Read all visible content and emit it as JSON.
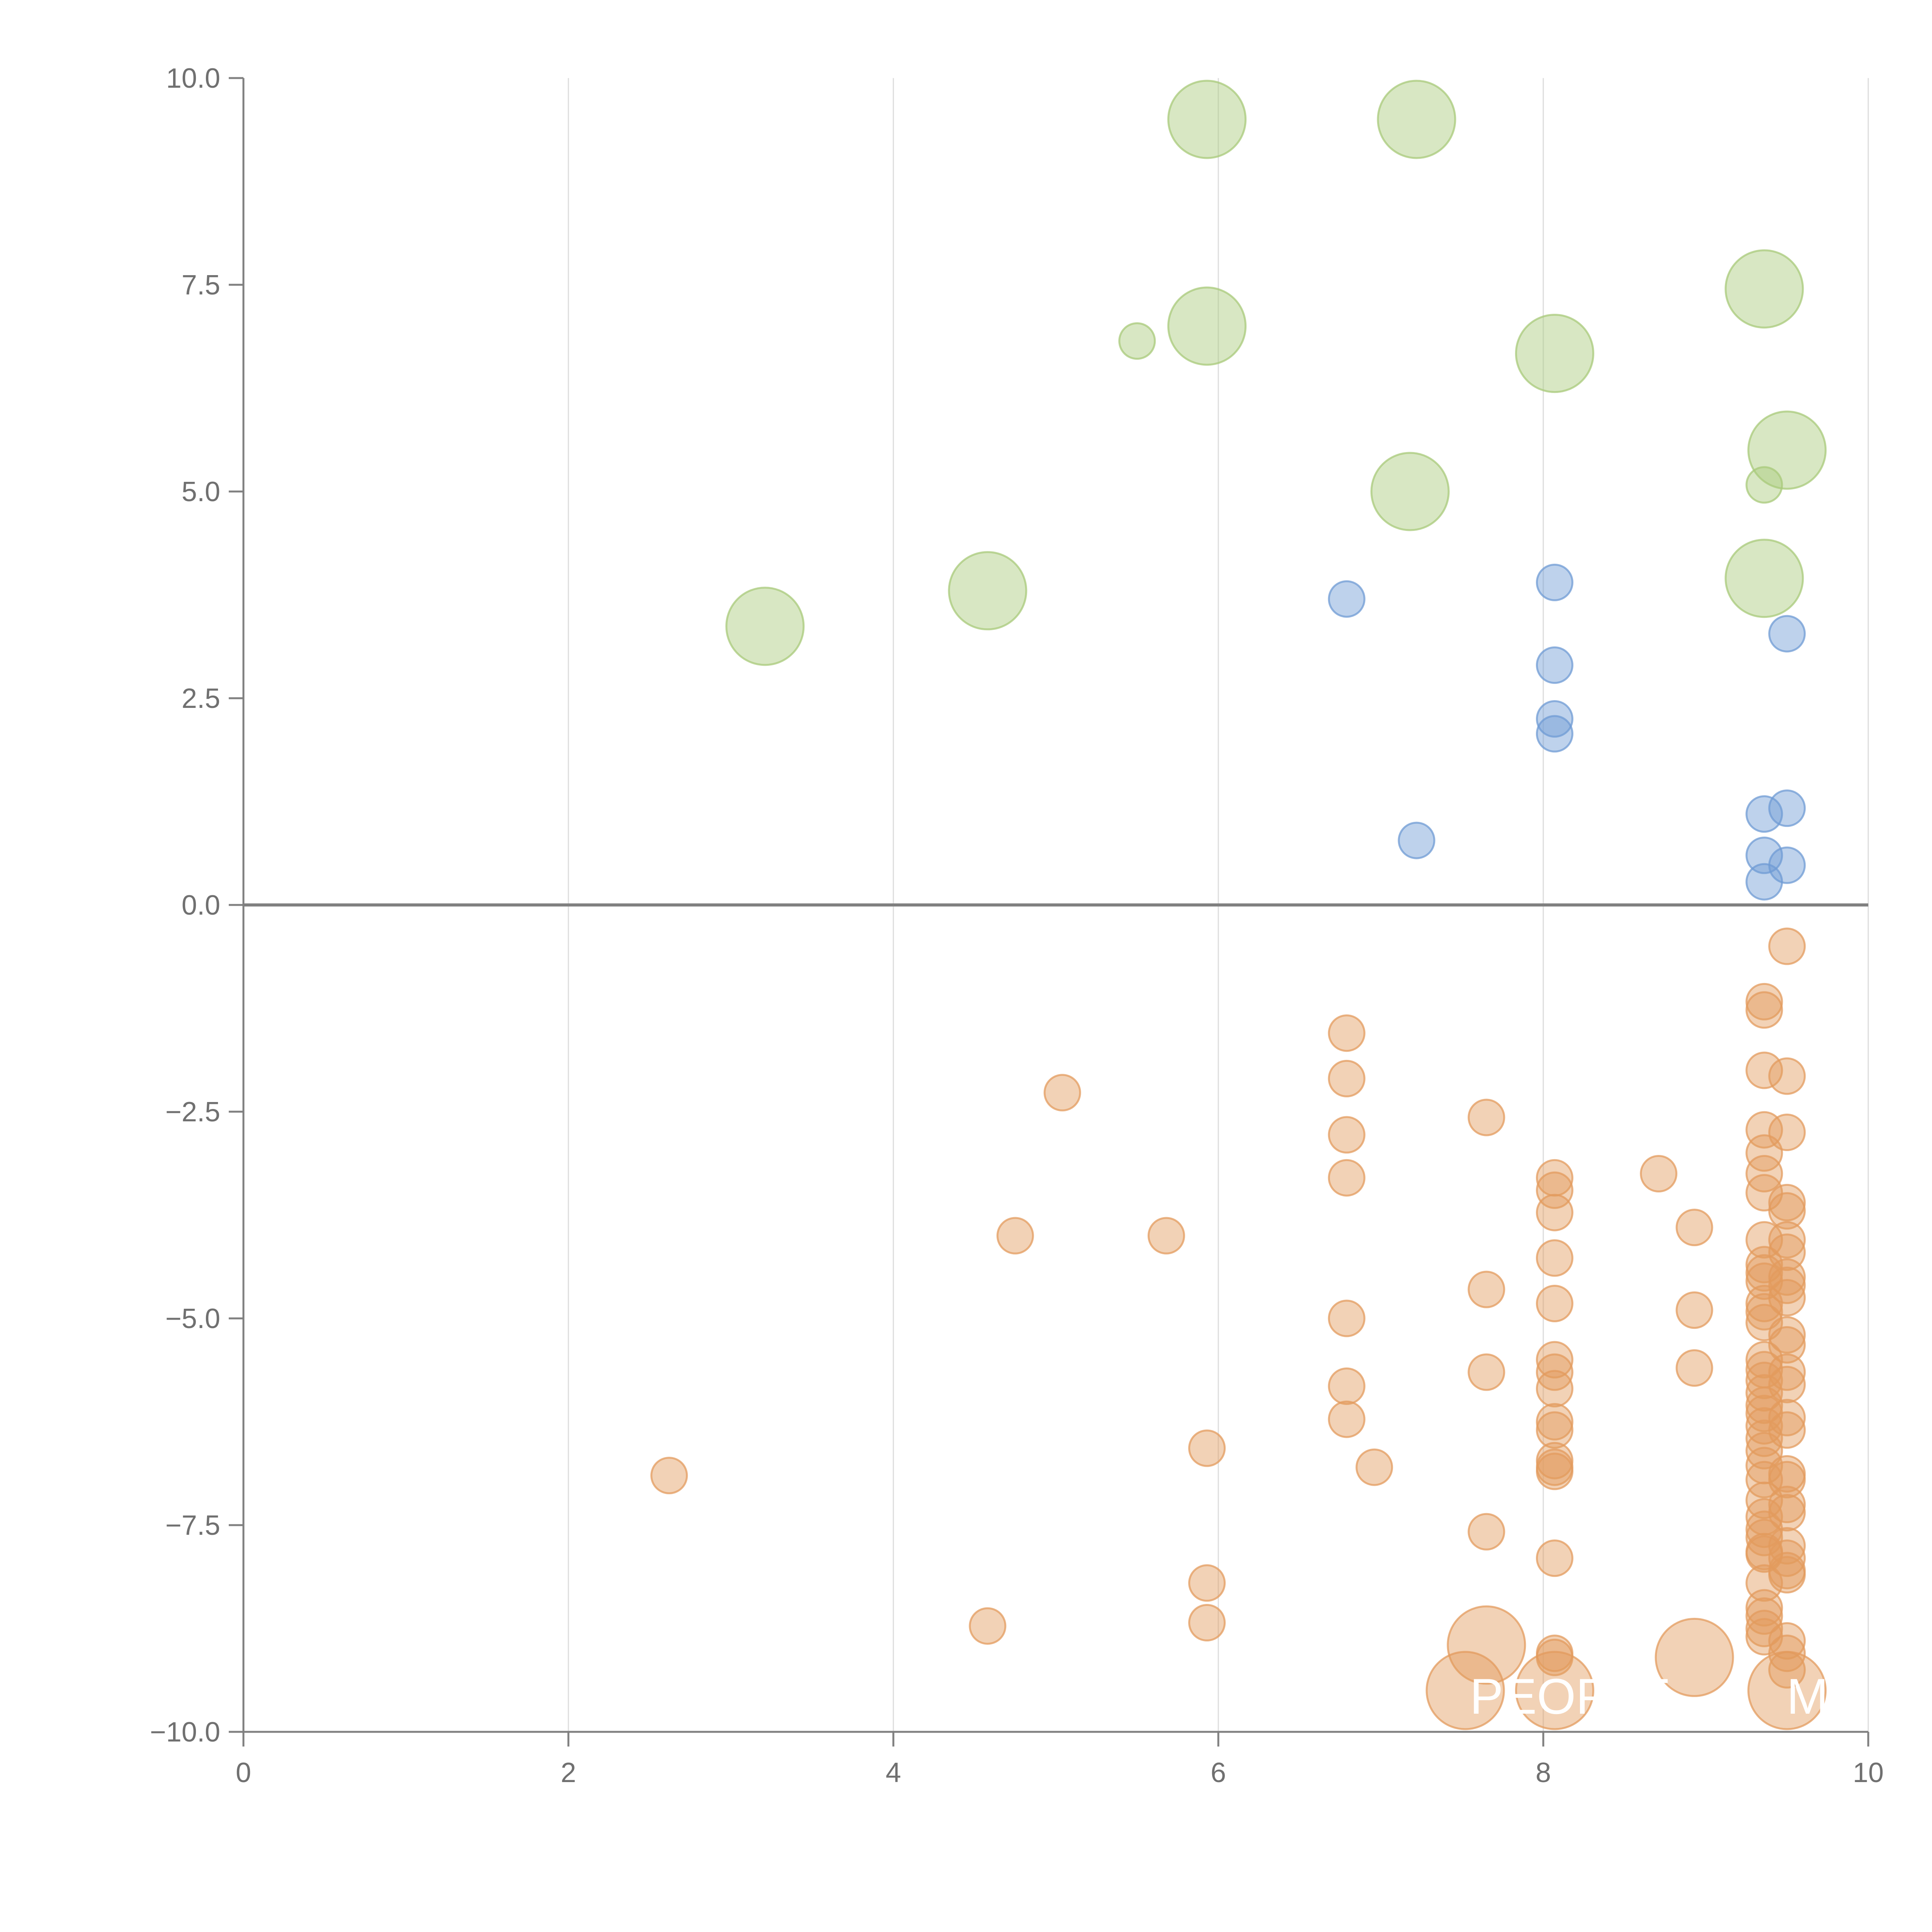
{
  "colors": {
    "positive_large": "#a8c97a",
    "positive_small": "#6f9bd4",
    "negative": "#e39b5d",
    "axis": "#808080",
    "grid": "#dcdcdc"
  },
  "chart_data": {
    "type": "scatter",
    "title": "",
    "xlabel": "",
    "ylabel": "",
    "xlim": [
      0,
      10
    ],
    "ylim": [
      -10,
      10
    ],
    "x_ticks": [
      0,
      2,
      4,
      6,
      8,
      10
    ],
    "x_tick_labels": [
      "0",
      "2",
      "4",
      "6",
      "8",
      "10"
    ],
    "y_ticks": [
      10,
      7.5,
      5,
      2.5,
      0,
      -2.5,
      -5,
      -7.5,
      -10
    ],
    "y_tick_labels": [
      "10.0",
      "7.5",
      "5.0",
      "2.5",
      "0.0",
      "−2.5",
      "−5.0",
      "−7.5",
      "−10.0"
    ],
    "vertical_grid": true,
    "horizontal_zero_line": true,
    "annotations": [
      {
        "text": "PEOPLE",
        "x": 7.5,
        "y": -9.5
      },
      {
        "text": "MT",
        "x": 9.45,
        "y": -9.5
      }
    ],
    "series": [
      {
        "name": "positive-large",
        "color_key": "positive_large",
        "size": "large",
        "points": [
          [
            5.93,
            9.5
          ],
          [
            7.22,
            9.5
          ],
          [
            9.36,
            7.45
          ],
          [
            5.93,
            7.0
          ],
          [
            8.07,
            6.67
          ],
          [
            9.5,
            5.5
          ],
          [
            7.18,
            5.0
          ],
          [
            9.36,
            3.95
          ],
          [
            4.58,
            3.8
          ],
          [
            3.21,
            3.37
          ]
        ]
      },
      {
        "name": "positive-small-green",
        "color_key": "positive_large",
        "size": "small",
        "points": [
          [
            5.5,
            6.82
          ],
          [
            9.36,
            5.08
          ]
        ]
      },
      {
        "name": "positive-small-blue",
        "color_key": "positive_small",
        "size": "small",
        "points": [
          [
            6.79,
            3.7
          ],
          [
            8.07,
            3.9
          ],
          [
            8.07,
            2.9
          ],
          [
            8.07,
            2.25
          ],
          [
            8.07,
            2.07
          ],
          [
            9.5,
            3.28
          ],
          [
            9.36,
            1.1
          ],
          [
            9.5,
            1.17
          ],
          [
            7.22,
            0.78
          ],
          [
            9.36,
            0.6
          ],
          [
            9.5,
            0.48
          ],
          [
            9.36,
            0.28
          ]
        ]
      },
      {
        "name": "negative-small",
        "color_key": "negative",
        "size": "small",
        "points": [
          [
            9.5,
            -0.5
          ],
          [
            9.36,
            -1.17
          ],
          [
            9.36,
            -1.27
          ],
          [
            6.79,
            -1.55
          ],
          [
            6.79,
            -2.1
          ],
          [
            9.36,
            -2.0
          ],
          [
            9.5,
            -2.07
          ],
          [
            5.04,
            -2.27
          ],
          [
            7.65,
            -2.57
          ],
          [
            6.79,
            -2.78
          ],
          [
            9.36,
            -2.72
          ],
          [
            9.5,
            -2.75
          ],
          [
            9.36,
            -3.0
          ],
          [
            9.36,
            -3.25
          ],
          [
            8.07,
            -3.3
          ],
          [
            8.71,
            -3.25
          ],
          [
            6.79,
            -3.3
          ],
          [
            8.07,
            -3.45
          ],
          [
            9.36,
            -3.48
          ],
          [
            9.5,
            -3.6
          ],
          [
            8.07,
            -3.72
          ],
          [
            9.5,
            -3.7
          ],
          [
            8.93,
            -3.9
          ],
          [
            4.75,
            -4.0
          ],
          [
            5.68,
            -4.0
          ],
          [
            9.36,
            -4.05
          ],
          [
            9.5,
            -4.05
          ],
          [
            9.5,
            -4.2
          ],
          [
            8.07,
            -4.27
          ],
          [
            9.36,
            -4.35
          ],
          [
            9.36,
            -4.45
          ],
          [
            9.5,
            -4.5
          ],
          [
            9.36,
            -4.55
          ],
          [
            9.5,
            -4.6
          ],
          [
            7.65,
            -4.65
          ],
          [
            9.5,
            -4.75
          ],
          [
            8.07,
            -4.82
          ],
          [
            9.36,
            -4.82
          ],
          [
            9.36,
            -4.92
          ],
          [
            8.93,
            -4.9
          ],
          [
            6.79,
            -5.0
          ],
          [
            9.36,
            -5.05
          ],
          [
            9.5,
            -5.2
          ],
          [
            9.5,
            -5.32
          ],
          [
            9.36,
            -5.5
          ],
          [
            8.07,
            -5.5
          ],
          [
            9.36,
            -5.62
          ],
          [
            7.65,
            -5.65
          ],
          [
            8.93,
            -5.6
          ],
          [
            8.07,
            -5.65
          ],
          [
            9.5,
            -5.65
          ],
          [
            9.36,
            -5.75
          ],
          [
            9.5,
            -5.8
          ],
          [
            6.79,
            -5.82
          ],
          [
            8.07,
            -5.85
          ],
          [
            9.36,
            -5.9
          ],
          [
            9.36,
            -6.05
          ],
          [
            9.36,
            -6.15
          ],
          [
            9.5,
            -6.2
          ],
          [
            6.79,
            -6.22
          ],
          [
            8.07,
            -6.25
          ],
          [
            9.36,
            -6.3
          ],
          [
            8.07,
            -6.35
          ],
          [
            9.5,
            -6.35
          ],
          [
            9.36,
            -6.45
          ],
          [
            5.93,
            -6.57
          ],
          [
            9.36,
            -6.6
          ],
          [
            8.07,
            -6.72
          ],
          [
            9.36,
            -6.78
          ],
          [
            6.96,
            -6.8
          ],
          [
            8.07,
            -6.8
          ],
          [
            8.07,
            -6.85
          ],
          [
            2.62,
            -6.9
          ],
          [
            9.5,
            -6.88
          ],
          [
            9.5,
            -6.95
          ],
          [
            9.36,
            -6.95
          ],
          [
            9.36,
            -7.2
          ],
          [
            9.5,
            -7.25
          ],
          [
            9.36,
            -7.4
          ],
          [
            9.5,
            -7.35
          ],
          [
            9.36,
            -7.55
          ],
          [
            7.65,
            -7.58
          ],
          [
            9.36,
            -7.65
          ],
          [
            9.5,
            -7.75
          ],
          [
            9.36,
            -7.82
          ],
          [
            9.36,
            -7.85
          ],
          [
            8.07,
            -7.9
          ],
          [
            9.5,
            -7.9
          ],
          [
            9.5,
            -8.05
          ],
          [
            9.5,
            -8.1
          ],
          [
            5.93,
            -8.2
          ],
          [
            9.36,
            -8.2
          ],
          [
            9.36,
            -8.5
          ],
          [
            9.36,
            -8.6
          ],
          [
            5.93,
            -8.68
          ],
          [
            4.58,
            -8.72
          ],
          [
            9.36,
            -8.75
          ],
          [
            9.36,
            -8.85
          ],
          [
            9.5,
            -8.9
          ],
          [
            9.5,
            -9.05
          ],
          [
            8.07,
            -9.05
          ],
          [
            8.07,
            -9.1
          ],
          [
            9.5,
            -9.25
          ]
        ]
      },
      {
        "name": "negative-large",
        "color_key": "negative",
        "size": "large",
        "points": [
          [
            7.65,
            -8.95
          ],
          [
            8.93,
            -9.1
          ],
          [
            7.52,
            -9.5
          ],
          [
            8.07,
            -9.5
          ],
          [
            9.5,
            -9.5
          ]
        ]
      }
    ]
  }
}
